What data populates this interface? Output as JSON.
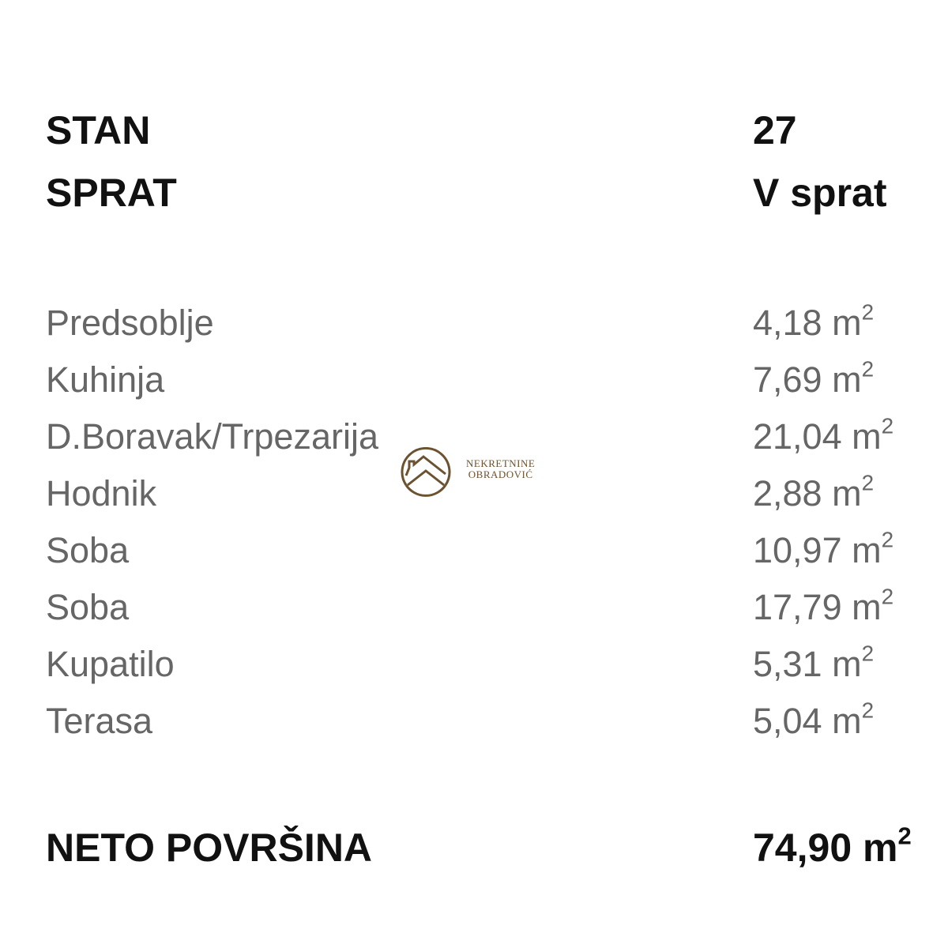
{
  "header": [
    {
      "label": "STAN",
      "value": "27"
    },
    {
      "label": "SPRAT",
      "value": "V sprat"
    }
  ],
  "rooms": [
    {
      "label": "Predsoblje",
      "value": "4,18",
      "unit": "m",
      "exp": "2"
    },
    {
      "label": "Kuhinja",
      "value": "7,69",
      "unit": "m",
      "exp": "2"
    },
    {
      "label": "D.Boravak/Trpezarija",
      "value": "21,04",
      "unit": "m",
      "exp": "2"
    },
    {
      "label": "Hodnik",
      "value": "2,88",
      "unit": "m",
      "exp": "2"
    },
    {
      "label": "Soba",
      "value": "10,97",
      "unit": "m",
      "exp": "2"
    },
    {
      "label": "Soba",
      "value": "17,79",
      "unit": "m",
      "exp": "2"
    },
    {
      "label": "Kupatilo",
      "value": "5,31",
      "unit": "m",
      "exp": "2"
    },
    {
      "label": "Terasa",
      "value": "5,04",
      "unit": "m",
      "exp": "2"
    }
  ],
  "total": {
    "label": "NETO POVRŠINA",
    "value": "74,90",
    "unit": "m",
    "exp": "2"
  },
  "watermark": {
    "line1": "NEKRETNINE",
    "line2": "OBRADOVIĆ",
    "color": "#6b5230"
  }
}
